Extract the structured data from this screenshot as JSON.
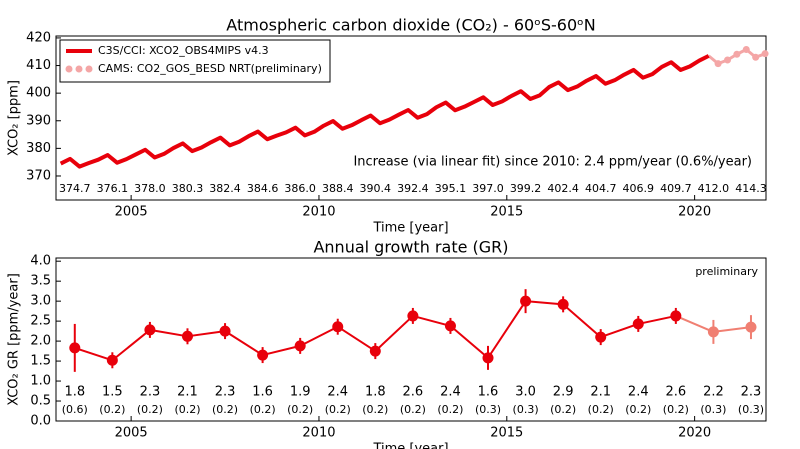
{
  "chart_data": [
    {
      "type": "line",
      "title": "Atmospheric carbon dioxide (CO₂) - 60ᵒS-60ᵒN",
      "xlabel": "Time [year]",
      "ylabel": "XCO₂ [ppm]",
      "xlim": [
        2003,
        2021.9
      ],
      "ylim": [
        361.3,
        420.7
      ],
      "xticks": [
        2005,
        2010,
        2015,
        2020
      ],
      "yticks": [
        370,
        380,
        390,
        400,
        410,
        420
      ],
      "legend": "upper left",
      "annotation": "Increase (via linear fit) since 2010: 2.4 ppm/year (0.6%/year)",
      "series": [
        {
          "name": "C3S/CCI: XCO2_OBS4MIPS v4.3",
          "color": "#e8000b",
          "x": [
            2003.125,
            2003.375,
            2003.625,
            2003.875,
            2004.125,
            2004.375,
            2004.625,
            2004.875,
            2005.125,
            2005.375,
            2005.625,
            2005.875,
            2006.125,
            2006.375,
            2006.625,
            2006.875,
            2007.125,
            2007.375,
            2007.625,
            2007.875,
            2008.125,
            2008.375,
            2008.625,
            2008.875,
            2009.125,
            2009.375,
            2009.625,
            2009.875,
            2010.125,
            2010.375,
            2010.625,
            2010.875,
            2011.125,
            2011.375,
            2011.625,
            2011.875,
            2012.125,
            2012.375,
            2012.625,
            2012.875,
            2013.125,
            2013.375,
            2013.625,
            2013.875,
            2014.125,
            2014.375,
            2014.625,
            2014.875,
            2015.125,
            2015.375,
            2015.625,
            2015.875,
            2016.125,
            2016.375,
            2016.625,
            2016.875,
            2017.125,
            2017.375,
            2017.625,
            2017.875,
            2018.125,
            2018.375,
            2018.625,
            2018.875,
            2019.125,
            2019.375,
            2019.625,
            2019.875,
            2020.125,
            2020.375
          ],
          "values": [
            374.5,
            376.2,
            373.4,
            374.7,
            375.9,
            377.6,
            374.8,
            376.1,
            377.8,
            379.5,
            376.7,
            378.0,
            380.1,
            381.8,
            379.0,
            380.3,
            382.2,
            383.9,
            381.1,
            382.4,
            384.4,
            386.1,
            383.3,
            384.6,
            385.8,
            387.5,
            384.7,
            386.0,
            388.2,
            389.9,
            387.1,
            388.4,
            390.2,
            391.9,
            389.1,
            390.4,
            392.2,
            393.9,
            391.1,
            392.4,
            394.9,
            396.6,
            393.8,
            395.1,
            396.8,
            398.5,
            395.7,
            397.0,
            399.0,
            400.7,
            397.9,
            399.2,
            402.2,
            403.9,
            401.1,
            402.4,
            404.5,
            406.2,
            403.4,
            404.7,
            406.7,
            408.4,
            405.6,
            406.9,
            409.5,
            411.2,
            408.4,
            409.7,
            411.8,
            413.5
          ]
        },
        {
          "name": "CAMS: CO2_GOS_BESD NRT(preliminary)",
          "color": "#f4a6a6",
          "x": [
            2020.625,
            2020.875,
            2021.125,
            2021.375,
            2021.625,
            2021.875
          ],
          "values": [
            410.7,
            412.0,
            414.1,
            415.8,
            413.0,
            414.3
          ]
        }
      ],
      "annual_means": {
        "x": [
          2003.5,
          2004.5,
          2005.5,
          2006.5,
          2007.5,
          2008.5,
          2009.5,
          2010.5,
          2011.5,
          2012.5,
          2013.5,
          2014.5,
          2015.5,
          2016.5,
          2017.5,
          2018.5,
          2019.5,
          2020.5,
          2021.5
        ],
        "values": [
          374.7,
          376.1,
          378.0,
          380.3,
          382.4,
          384.6,
          386.0,
          388.4,
          390.4,
          392.4,
          395.1,
          397.0,
          399.2,
          402.4,
          404.7,
          406.9,
          409.7,
          412.0,
          414.3
        ],
        "value_labels": [
          "374.7",
          "376.1",
          "378.0",
          "380.3",
          "382.4",
          "384.6",
          "386.0",
          "388.4",
          "390.4",
          "392.4",
          "395.1",
          "397.0",
          "399.2",
          "402.4",
          "404.7",
          "406.9",
          "409.7",
          "412.0",
          "414.3"
        ],
        "color": "#e8000b"
      }
    },
    {
      "type": "line",
      "title": "Annual growth rate (GR)",
      "xlabel": "Time [year]",
      "ylabel": "XCO₂ GR [ppm/year]",
      "xlim": [
        2003,
        2021.9
      ],
      "ylim": [
        0,
        4.08
      ],
      "xticks": [
        2005,
        2010,
        2015,
        2020
      ],
      "yticks": [
        {
          "value": 0,
          "label": "0.0"
        },
        {
          "value": 0.5,
          "label": "0.5"
        },
        {
          "value": 1,
          "label": "1.0"
        },
        {
          "value": 1.5,
          "label": "1.5"
        },
        {
          "value": 2,
          "label": "2.0"
        },
        {
          "value": 2.5,
          "label": "2.5"
        },
        {
          "value": 3,
          "label": "3.0"
        },
        {
          "value": 3.5,
          "label": "3.5"
        },
        {
          "value": 4,
          "label": "4.0"
        }
      ],
      "annotation": "preliminary",
      "series": [
        {
          "color": "#e8000b",
          "x": [
            2003.5,
            2004.5,
            2005.5,
            2006.5,
            2007.5,
            2008.5,
            2009.5,
            2010.5,
            2011.5,
            2012.5,
            2013.5,
            2014.5,
            2015.5,
            2016.5,
            2017.5,
            2018.5,
            2019.5
          ],
          "values": [
            1.83,
            1.52,
            2.28,
            2.12,
            2.25,
            1.65,
            1.88,
            2.36,
            1.75,
            2.63,
            2.38,
            1.58,
            3.0,
            2.92,
            2.1,
            2.43,
            2.63
          ],
          "value_labels": [
            "1.8",
            "1.5",
            "2.3",
            "2.1",
            "2.3",
            "1.6",
            "1.9",
            "2.4",
            "1.8",
            "2.6",
            "2.4",
            "1.6",
            "3.0",
            "2.9",
            "2.1",
            "2.4",
            "2.6"
          ],
          "errors": [
            0.6,
            0.2,
            0.2,
            0.2,
            0.2,
            0.2,
            0.2,
            0.2,
            0.2,
            0.2,
            0.2,
            0.3,
            0.3,
            0.2,
            0.2,
            0.2,
            0.2
          ],
          "error_labels": [
            "(0.6)",
            "(0.2)",
            "(0.2)",
            "(0.2)",
            "(0.2)",
            "(0.2)",
            "(0.2)",
            "(0.2)",
            "(0.2)",
            "(0.2)",
            "(0.2)",
            "(0.3)",
            "(0.3)",
            "(0.2)",
            "(0.2)",
            "(0.2)",
            "(0.2)"
          ]
        },
        {
          "color": "#f07f72",
          "x": [
            2020.5,
            2021.5
          ],
          "values": [
            2.23,
            2.35
          ],
          "value_labels": [
            "2.2",
            "2.3"
          ],
          "errors": [
            0.3,
            0.3
          ],
          "error_labels": [
            "(0.3)",
            "(0.3)"
          ]
        }
      ]
    }
  ]
}
